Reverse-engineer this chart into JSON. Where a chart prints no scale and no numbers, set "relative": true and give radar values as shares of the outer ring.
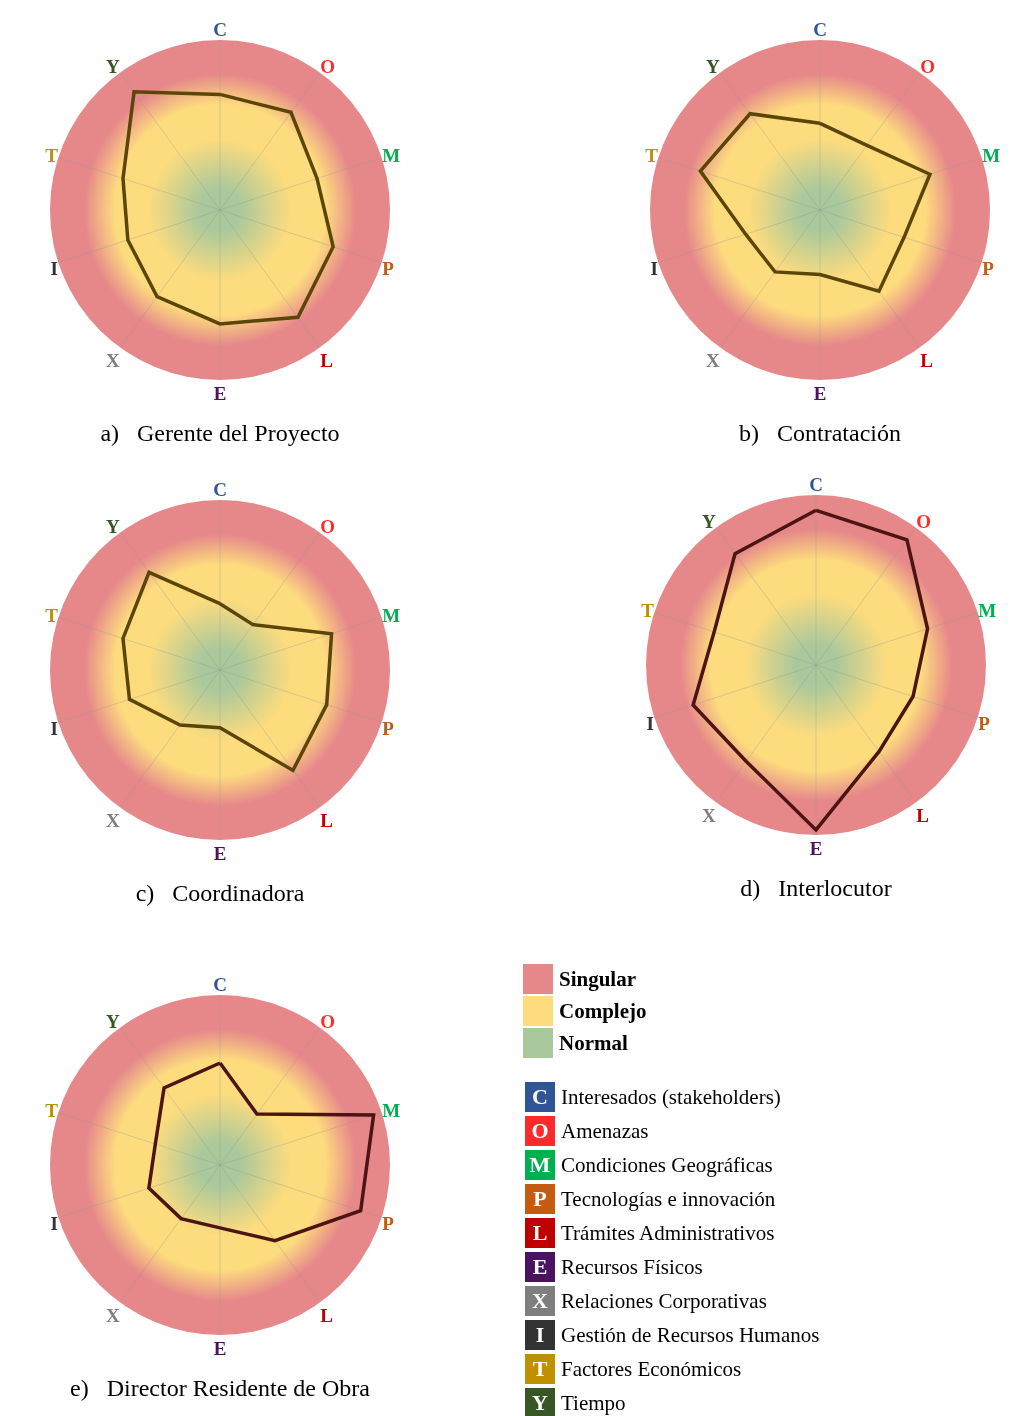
{
  "chart_data": [
    {
      "type": "radar",
      "title": "a)   Gerente del Proyecto",
      "categories": [
        "C",
        "O",
        "M",
        "P",
        "L",
        "E",
        "X",
        "I",
        "T",
        "Y"
      ],
      "relative": true,
      "grid": true,
      "series": [
        {
          "color": "#5c4508",
          "values": [
            0.68,
            0.71,
            0.6,
            0.7,
            0.78,
            0.67,
            0.63,
            0.57,
            0.6,
            0.86
          ]
        }
      ]
    },
    {
      "type": "radar",
      "title": "b)   Contratación",
      "categories": [
        "C",
        "O",
        "M",
        "P",
        "L",
        "E",
        "X",
        "I",
        "T",
        "Y"
      ],
      "relative": true,
      "grid": true,
      "series": [
        {
          "color": "#5c4508",
          "values": [
            0.51,
            0.47,
            0.68,
            0.52,
            0.59,
            0.38,
            0.45,
            0.46,
            0.74,
            0.7
          ]
        }
      ]
    },
    {
      "type": "radar",
      "title": "c)   Coordinadora",
      "categories": [
        "C",
        "O",
        "M",
        "P",
        "L",
        "E",
        "X",
        "I",
        "T",
        "Y"
      ],
      "relative": true,
      "grid": true,
      "series": [
        {
          "color": "#5c4508",
          "values": [
            0.39,
            0.33,
            0.69,
            0.66,
            0.73,
            0.34,
            0.4,
            0.56,
            0.6,
            0.71
          ]
        }
      ]
    },
    {
      "type": "radar",
      "title": "d)   Interlocutor",
      "categories": [
        "C",
        "O",
        "M",
        "P",
        "L",
        "E",
        "X",
        "I",
        "T",
        "Y"
      ],
      "relative": true,
      "grid": true,
      "series": [
        {
          "color": "#4d1414",
          "values": [
            0.91,
            0.91,
            0.69,
            0.6,
            0.63,
            0.97,
            0.7,
            0.76,
            0.63,
            0.81
          ]
        }
      ]
    },
    {
      "type": "radar",
      "title": "e)   Director Residente de Obra",
      "categories": [
        "C",
        "O",
        "M",
        "P",
        "L",
        "E",
        "X",
        "I",
        "T",
        "Y"
      ],
      "relative": true,
      "grid": true,
      "series": [
        {
          "color": "#4d1414",
          "values": [
            0.6,
            0.37,
            0.95,
            0.87,
            0.55,
            0.37,
            0.39,
            0.44,
            0.4,
            0.56
          ]
        }
      ]
    },
    {
      "type": "other",
      "categories": [
        "Singular",
        "Complejo",
        "Normal"
      ],
      "colors": [
        "#e6888a",
        "#fddc7e",
        "#a9c89c"
      ]
    },
    {
      "type": "other",
      "categories": [
        "C",
        "O",
        "M",
        "P",
        "L",
        "E",
        "X",
        "I",
        "T",
        "Y"
      ],
      "colors": [
        "#2f5597",
        "#ff2a2a",
        "#00b050",
        "#c55a11",
        "#c00000",
        "#4b1260",
        "#7f7f7f",
        "#333333",
        "#bf9000",
        "#375623"
      ],
      "annotations": [
        "Interesados (stakeholders)",
        "Amenazas",
        "Condiciones Geográficas",
        "Tecnologías e innovación",
        "Trámites Administrativos",
        "Recursos Físicos",
        "Relaciones Corporativas",
        "Gestión de Recursos Humanos",
        "Factores Económicos",
        "Tiempo"
      ]
    }
  ]
}
